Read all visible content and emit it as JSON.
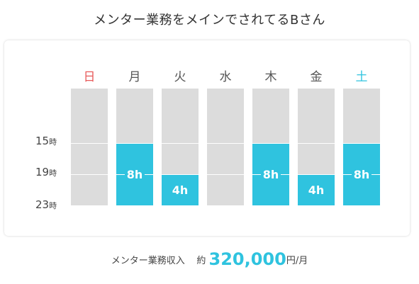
{
  "title": "メンター業務をメインでされてるBさん",
  "days": [
    {
      "label": "日",
      "color": "#e85a5a"
    },
    {
      "label": "月",
      "color": "#555555"
    },
    {
      "label": "火",
      "color": "#555555"
    },
    {
      "label": "水",
      "color": "#555555"
    },
    {
      "label": "木",
      "color": "#555555"
    },
    {
      "label": "金",
      "color": "#555555"
    },
    {
      "label": "土",
      "color": "#2fc3df"
    }
  ],
  "time_labels": [
    {
      "num": "15",
      "unit": "時"
    },
    {
      "num": "19",
      "unit": "時"
    },
    {
      "num": "23",
      "unit": "時"
    }
  ],
  "schedule": [
    {
      "day": "日",
      "start": null,
      "hours": 0,
      "label": ""
    },
    {
      "day": "月",
      "start": 15,
      "hours": 8,
      "label": "8h"
    },
    {
      "day": "火",
      "start": 19,
      "hours": 4,
      "label": "4h"
    },
    {
      "day": "水",
      "start": null,
      "hours": 0,
      "label": ""
    },
    {
      "day": "木",
      "start": 15,
      "hours": 8,
      "label": "8h"
    },
    {
      "day": "金",
      "start": 19,
      "hours": 4,
      "label": "4h"
    },
    {
      "day": "土",
      "start": 15,
      "hours": 8,
      "label": "8h"
    }
  ],
  "income": {
    "label": "メンター業務収入",
    "prefix": "約",
    "amount": "320,000",
    "unit": "円/月"
  },
  "colors": {
    "accent": "#2fc3df",
    "empty": "#dcdcdc",
    "sunday": "#e85a5a"
  }
}
